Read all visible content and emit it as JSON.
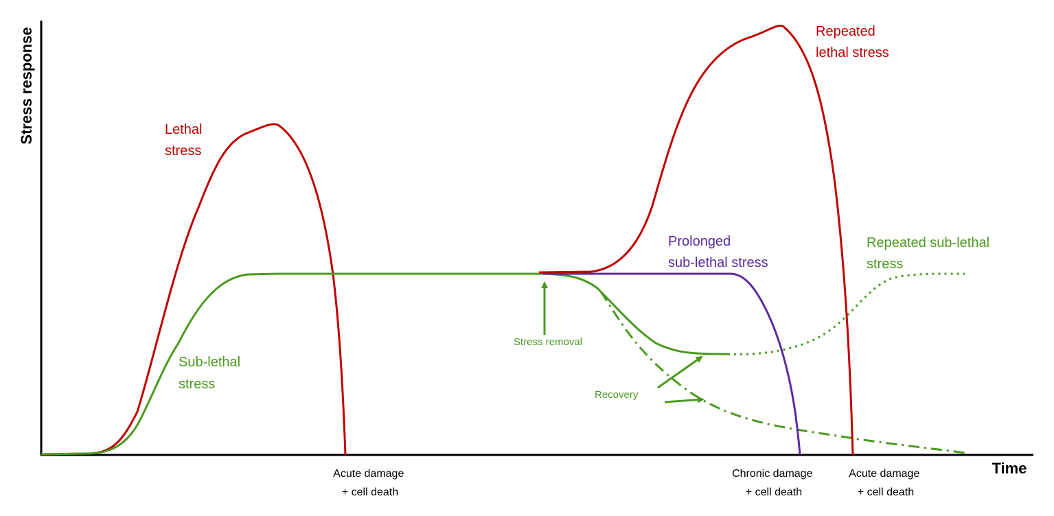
{
  "axes": {
    "y_label": "Stress response",
    "x_label": "Time"
  },
  "labels": {
    "lethal": [
      "Lethal",
      "stress"
    ],
    "sub_lethal": [
      "Sub-lethal",
      "stress"
    ],
    "repeated_lethal": [
      "Repeated",
      "lethal stress"
    ],
    "prolonged": [
      "Prolonged",
      "sub-lethal stress"
    ],
    "repeated_sub_lethal": [
      "Repeated sub-lethal",
      "stress"
    ],
    "stress_removal": "Stress removal",
    "recovery": "Recovery",
    "acute_1": [
      "Acute damage",
      "+ cell death"
    ],
    "chronic": [
      "Chronic damage",
      "+ cell death"
    ],
    "acute_2": [
      "Acute damage",
      "+ cell death"
    ]
  },
  "colors": {
    "lethal": "#c00000",
    "sub_lethal": "#4a9a1f",
    "prolonged": "#5b2a9e",
    "axis": "#000000"
  }
}
